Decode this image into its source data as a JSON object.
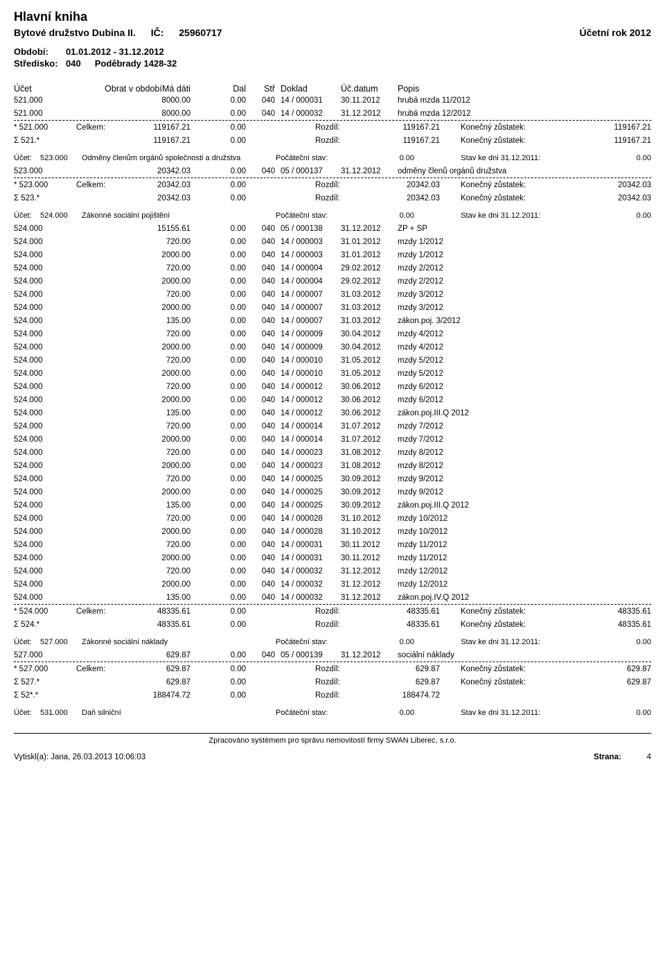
{
  "title": "Hlavní kniha",
  "org_name": "Bytové družstvo Dubina II.",
  "ic_label": "IČ:",
  "ic": "25960717",
  "year_label": "Účetní rok 2012",
  "period_label": "Období:",
  "period": "01.01.2012 - 31.12.2012",
  "stredisko_label": "Středisko:",
  "stredisko_code": "040",
  "stredisko_name": "Poděbrady 1428-32",
  "obrat_label": "Obrat v období",
  "hdr": {
    "ucet": "Účet",
    "madati": "Má dáti",
    "dal": "Dal",
    "str": "Stř",
    "doklad": "Doklad",
    "datum": "Úč.datum",
    "popis": "Popis"
  },
  "labels": {
    "celkem": "Celkem:",
    "rozdil": "Rozdíl:",
    "konecny": "Konečný zůstatek:",
    "ucet": "Účet:",
    "pocatecni": "Počáteční stav:",
    "stav_ke_dni": "Stav ke dni 31.12.2011:"
  },
  "g521_rows": [
    {
      "u": "521.000",
      "md": "8000.00",
      "dal": "0.00",
      "str": "040",
      "dok": "14 / 000031",
      "dat": "30.11.2012",
      "popis": "hrubá mzda 11/2012"
    },
    {
      "u": "521.000",
      "md": "8000.00",
      "dal": "0.00",
      "str": "040",
      "dok": "14 / 000032",
      "dat": "31.12.2012",
      "popis": "hrubá mzda 12/2012"
    }
  ],
  "g521_total": {
    "star": "* 521.000",
    "celkem": "119167.21",
    "dal": "0.00",
    "rozdil": "119167.21",
    "konecny": "119167.21"
  },
  "g521_sum": {
    "sum": "Σ 521.*",
    "celkem": "119167.21",
    "dal": "0.00",
    "rozdil": "119167.21",
    "konecny": "119167.21"
  },
  "a523": {
    "num": "523.000",
    "desc": "Odměny členům orgánů společnosti a družstva",
    "poc": "0.00",
    "stav": "0.00"
  },
  "g523_rows": [
    {
      "u": "523.000",
      "md": "20342.03",
      "dal": "0.00",
      "str": "040",
      "dok": "05 / 000137",
      "dat": "31.12.2012",
      "popis": "odměny členů orgánů družstva"
    }
  ],
  "g523_total": {
    "star": "* 523.000",
    "celkem": "20342.03",
    "dal": "0.00",
    "rozdil": "20342.03",
    "konecny": "20342.03"
  },
  "g523_sum": {
    "sum": "Σ 523.*",
    "celkem": "20342.03",
    "dal": "0.00",
    "rozdil": "20342.03",
    "konecny": "20342.03"
  },
  "a524": {
    "num": "524.000",
    "desc": "Zákonné sociální pojištění",
    "poc": "0.00",
    "stav": "0.00"
  },
  "g524_rows": [
    {
      "u": "524.000",
      "md": "15155.61",
      "dal": "0.00",
      "str": "040",
      "dok": "05 / 000138",
      "dat": "31.12.2012",
      "popis": "ZP + SP"
    },
    {
      "u": "524.000",
      "md": "720.00",
      "dal": "0.00",
      "str": "040",
      "dok": "14 / 000003",
      "dat": "31.01.2012",
      "popis": "mzdy 1/2012"
    },
    {
      "u": "524.000",
      "md": "2000.00",
      "dal": "0.00",
      "str": "040",
      "dok": "14 / 000003",
      "dat": "31.01.2012",
      "popis": "mzdy 1/2012"
    },
    {
      "u": "524.000",
      "md": "720.00",
      "dal": "0.00",
      "str": "040",
      "dok": "14 / 000004",
      "dat": "29.02.2012",
      "popis": "mzdy 2/2012"
    },
    {
      "u": "524.000",
      "md": "2000.00",
      "dal": "0.00",
      "str": "040",
      "dok": "14 / 000004",
      "dat": "29.02.2012",
      "popis": "mzdy 2/2012"
    },
    {
      "u": "524.000",
      "md": "720.00",
      "dal": "0.00",
      "str": "040",
      "dok": "14 / 000007",
      "dat": "31.03.2012",
      "popis": "mzdy 3/2012"
    },
    {
      "u": "524.000",
      "md": "2000.00",
      "dal": "0.00",
      "str": "040",
      "dok": "14 / 000007",
      "dat": "31.03.2012",
      "popis": "mzdy 3/2012"
    },
    {
      "u": "524.000",
      "md": "135.00",
      "dal": "0.00",
      "str": "040",
      "dok": "14 / 000007",
      "dat": "31.03.2012",
      "popis": "zákon.poj. 3/2012"
    },
    {
      "u": "524.000",
      "md": "720.00",
      "dal": "0.00",
      "str": "040",
      "dok": "14 / 000009",
      "dat": "30.04.2012",
      "popis": "mzdy 4/2012"
    },
    {
      "u": "524.000",
      "md": "2000.00",
      "dal": "0.00",
      "str": "040",
      "dok": "14 / 000009",
      "dat": "30.04.2012",
      "popis": "mzdy 4/2012"
    },
    {
      "u": "524.000",
      "md": "720.00",
      "dal": "0.00",
      "str": "040",
      "dok": "14 / 000010",
      "dat": "31.05.2012",
      "popis": "mzdy 5/2012"
    },
    {
      "u": "524.000",
      "md": "2000.00",
      "dal": "0.00",
      "str": "040",
      "dok": "14 / 000010",
      "dat": "31.05.2012",
      "popis": "mzdy 5/2012"
    },
    {
      "u": "524.000",
      "md": "720.00",
      "dal": "0.00",
      "str": "040",
      "dok": "14 / 000012",
      "dat": "30.06.2012",
      "popis": "mzdy 6/2012"
    },
    {
      "u": "524.000",
      "md": "2000.00",
      "dal": "0.00",
      "str": "040",
      "dok": "14 / 000012",
      "dat": "30.06.2012",
      "popis": "mzdy 6/2012"
    },
    {
      "u": "524.000",
      "md": "135.00",
      "dal": "0.00",
      "str": "040",
      "dok": "14 / 000012",
      "dat": "30.06.2012",
      "popis": "zákon.poj.III.Q 2012"
    },
    {
      "u": "524.000",
      "md": "720.00",
      "dal": "0.00",
      "str": "040",
      "dok": "14 / 000014",
      "dat": "31.07.2012",
      "popis": "mzdy 7/2012"
    },
    {
      "u": "524.000",
      "md": "2000.00",
      "dal": "0.00",
      "str": "040",
      "dok": "14 / 000014",
      "dat": "31.07.2012",
      "popis": "mzdy 7/2012"
    },
    {
      "u": "524.000",
      "md": "720.00",
      "dal": "0.00",
      "str": "040",
      "dok": "14 / 000023",
      "dat": "31.08.2012",
      "popis": "mzdy 8/2012"
    },
    {
      "u": "524.000",
      "md": "2000.00",
      "dal": "0.00",
      "str": "040",
      "dok": "14 / 000023",
      "dat": "31.08.2012",
      "popis": "mzdy 8/2012"
    },
    {
      "u": "524.000",
      "md": "720.00",
      "dal": "0.00",
      "str": "040",
      "dok": "14 / 000025",
      "dat": "30.09.2012",
      "popis": "mzdy 9/2012"
    },
    {
      "u": "524.000",
      "md": "2000.00",
      "dal": "0.00",
      "str": "040",
      "dok": "14 / 000025",
      "dat": "30.09.2012",
      "popis": "mzdy 9/2012"
    },
    {
      "u": "524.000",
      "md": "135.00",
      "dal": "0.00",
      "str": "040",
      "dok": "14 / 000025",
      "dat": "30.09.2012",
      "popis": "zákon.poj.III.Q 2012"
    },
    {
      "u": "524.000",
      "md": "720.00",
      "dal": "0.00",
      "str": "040",
      "dok": "14 / 000028",
      "dat": "31.10.2012",
      "popis": "mzdy 10/2012"
    },
    {
      "u": "524.000",
      "md": "2000.00",
      "dal": "0.00",
      "str": "040",
      "dok": "14 / 000028",
      "dat": "31.10.2012",
      "popis": "mzdy 10/2012"
    },
    {
      "u": "524.000",
      "md": "720.00",
      "dal": "0.00",
      "str": "040",
      "dok": "14 / 000031",
      "dat": "30.11.2012",
      "popis": "mzdy 11/2012"
    },
    {
      "u": "524.000",
      "md": "2000.00",
      "dal": "0.00",
      "str": "040",
      "dok": "14 / 000031",
      "dat": "30.11.2012",
      "popis": "mzdy 11/2012"
    },
    {
      "u": "524.000",
      "md": "720.00",
      "dal": "0.00",
      "str": "040",
      "dok": "14 / 000032",
      "dat": "31.12.2012",
      "popis": "mzdy 12/2012"
    },
    {
      "u": "524.000",
      "md": "2000.00",
      "dal": "0.00",
      "str": "040",
      "dok": "14 / 000032",
      "dat": "31.12.2012",
      "popis": "mzdy 12/2012"
    },
    {
      "u": "524.000",
      "md": "135.00",
      "dal": "0.00",
      "str": "040",
      "dok": "14 / 000032",
      "dat": "31.12.2012",
      "popis": "zákon.poj.IV.Q 2012"
    }
  ],
  "g524_total": {
    "star": "* 524.000",
    "celkem": "48335.61",
    "dal": "0.00",
    "rozdil": "48335.61",
    "konecny": "48335.61"
  },
  "g524_sum": {
    "sum": "Σ 524.*",
    "celkem": "48335.61",
    "dal": "0.00",
    "rozdil": "48335.61",
    "konecny": "48335.61"
  },
  "a527": {
    "num": "527.000",
    "desc": "Zákonné sociální náklady",
    "poc": "0.00",
    "stav": "0.00"
  },
  "g527_rows": [
    {
      "u": "527.000",
      "md": "629.87",
      "dal": "0.00",
      "str": "040",
      "dok": "05 / 000139",
      "dat": "31.12.2012",
      "popis": "sociální náklady"
    }
  ],
  "g527_total": {
    "star": "* 527.000",
    "celkem": "629.87",
    "dal": "0.00",
    "rozdil": "629.87",
    "konecny": "629.87"
  },
  "g527_sum": {
    "sum": "Σ 527.*",
    "celkem": "629.87",
    "dal": "0.00",
    "rozdil": "629.87",
    "konecny": "629.87"
  },
  "g52_sum": {
    "sum": "Σ 52*.*",
    "celkem": "188474.72",
    "dal": "0.00",
    "rozdil": "188474.72",
    "konecny": ""
  },
  "a531": {
    "num": "531.000",
    "desc": "Daň silniční",
    "poc": "0.00",
    "stav": "0.00"
  },
  "footer_system": "Zpracováno systémem pro správu nemovitostí firmy SWAN Liberec, s.r.o.",
  "printed_label": "Vytiskl(a):",
  "printed": "Jana, 26.03.2013 10:06:03",
  "page_label": "Strana:",
  "page": "4"
}
